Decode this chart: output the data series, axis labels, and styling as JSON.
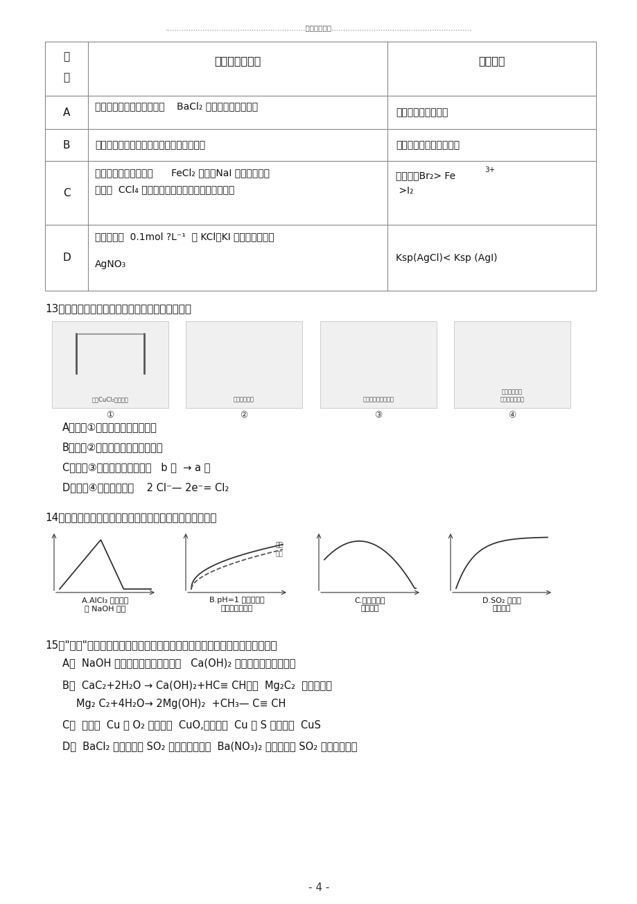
{
  "bg_color": "#ffffff",
  "header_line": "............................................................最新资料推荐............................................................",
  "q13_options": [
    "A．装置①中阳极上析出红色固体",
    "B．装置②中铜片应与电源负极相连",
    "C．装置③中外电路电流方向：   b 极  → a 极",
    "D．装置④中阴极反应：    2 Cl⁻— 2e⁻= Cl₂"
  ],
  "q14_captions": [
    "A.AlCl₃ 溶液中滴\n入 NaOH 溶液",
    "B.pH=1 的醒酸和盐\n酸分别加水稀释",
    "C.氮气通入酳\n酸溶液中",
    "D.SO₂ 气体通\n入溨水中"
  ],
  "page_number": "- 4 -"
}
